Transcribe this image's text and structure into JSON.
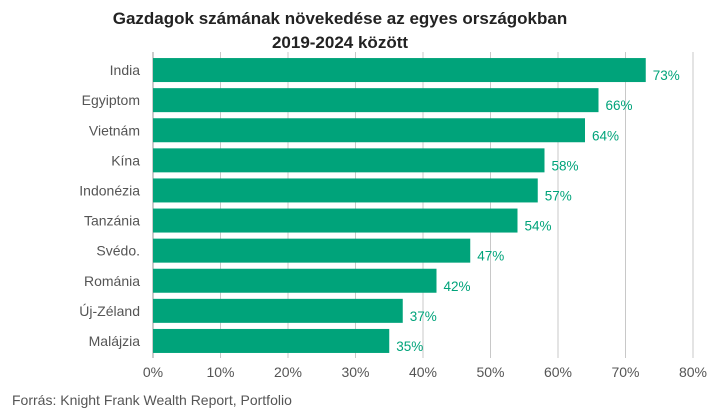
{
  "chart_data": {
    "type": "bar",
    "orientation": "horizontal",
    "title_lines": [
      "Gazdagok számának növekedése az egyes országokban",
      "2019-2024 között"
    ],
    "categories": [
      "India",
      "Egyiptom",
      "Vietnám",
      "Kína",
      "Indonézia",
      "Tanzánia",
      "Svédo.",
      "Románia",
      "Új-Zéland",
      "Malájzia"
    ],
    "values": [
      73,
      66,
      64,
      58,
      57,
      54,
      47,
      42,
      37,
      35
    ],
    "data_labels": [
      "73%",
      "66%",
      "64%",
      "58%",
      "57%",
      "54%",
      "47%",
      "42%",
      "37%",
      "35%"
    ],
    "x_ticks": [
      0,
      10,
      20,
      30,
      40,
      50,
      60,
      70,
      80
    ],
    "x_tick_labels": [
      "0%",
      "10%",
      "20%",
      "30%",
      "40%",
      "50%",
      "60%",
      "70%",
      "80%"
    ],
    "xlim": [
      0,
      80
    ],
    "grid": "vertical",
    "legend": "none",
    "bar_color": "#00a37a",
    "label_color": "#00a37a",
    "source": "Forrás: Knight Frank Wealth Report, Portfolio"
  }
}
